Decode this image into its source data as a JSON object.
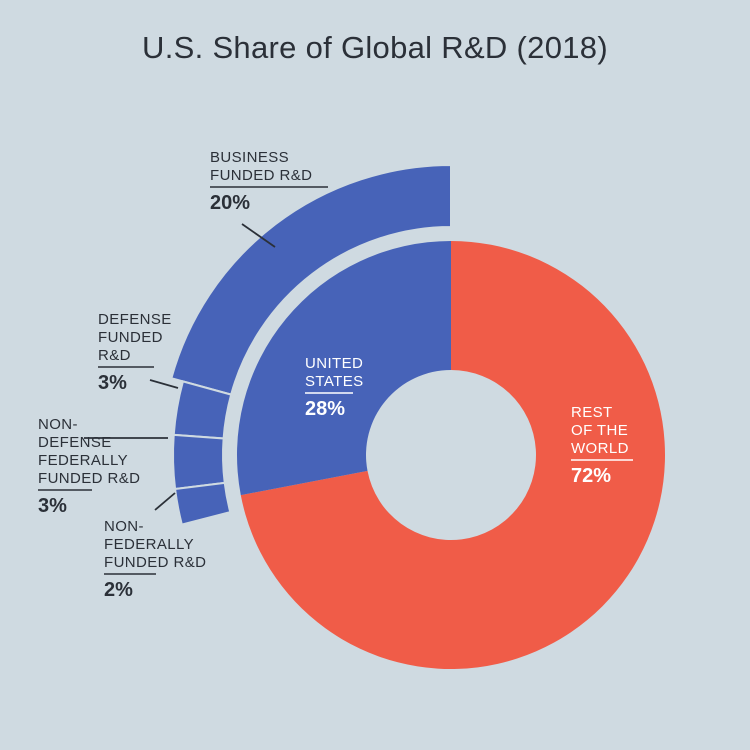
{
  "title": "U.S. Share of Global R&D (2018)",
  "colors": {
    "background": "#cfdae1",
    "us": "#4763b8",
    "rest": "#f05c48",
    "text_dark": "#2b3038",
    "text_light": "#ffffff"
  },
  "chart_data": {
    "type": "pie",
    "title": "U.S. Share of Global R&D (2018)",
    "inner": {
      "slices": [
        {
          "name": "United States",
          "label_lines": [
            "UNITED",
            "STATES"
          ],
          "pct_label": "28%",
          "value": 28
        },
        {
          "name": "Rest of the World",
          "label_lines": [
            "REST",
            "OF THE",
            "WORLD"
          ],
          "pct_label": "72%",
          "value": 72
        }
      ]
    },
    "outer": {
      "parent": "United States",
      "slices": [
        {
          "name": "Business funded R&D",
          "label_lines": [
            "BUSINESS",
            "FUNDED R&D"
          ],
          "pct_label": "20%",
          "value": 20
        },
        {
          "name": "Defense funded R&D",
          "label_lines": [
            "DEFENSE",
            "FUNDED",
            "R&D"
          ],
          "pct_label": "3%",
          "value": 3
        },
        {
          "name": "Non-defense federally funded R&D",
          "label_lines": [
            "NON-",
            "DEFENSE",
            "FEDERALLY",
            "FUNDED R&D"
          ],
          "pct_label": "3%",
          "value": 3
        },
        {
          "name": "Non-federally funded R&D",
          "label_lines": [
            "NON-",
            "FEDERALLY",
            "FUNDED R&D"
          ],
          "pct_label": "2%",
          "value": 2
        }
      ]
    }
  }
}
